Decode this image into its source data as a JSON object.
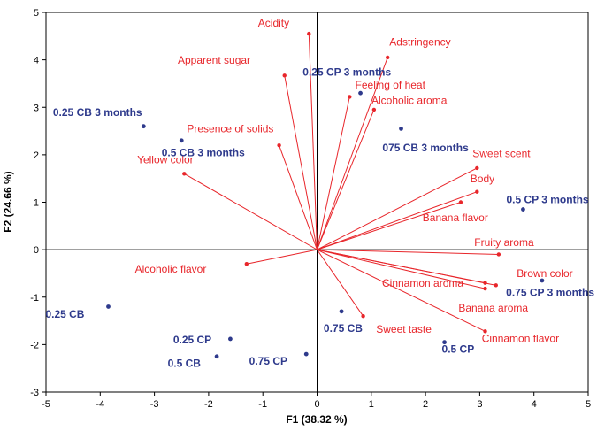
{
  "chart_data": {
    "type": "scatter",
    "subtype": "pca-biplot",
    "xlabel": "F1 (38.32 %)",
    "ylabel": "F2 (24.66 %)",
    "xlim": [
      -5,
      5
    ],
    "ylim": [
      -3,
      5
    ],
    "x_ticks": [
      -5,
      -4,
      -3,
      -2,
      -1,
      0,
      1,
      2,
      3,
      4,
      5
    ],
    "y_ticks": [
      -3,
      -2,
      -1,
      0,
      1,
      2,
      3,
      4,
      5
    ],
    "grid": false,
    "colors": {
      "variables": "#e8262b",
      "observations": "#2e3a8c",
      "axes": "#000000"
    },
    "variables": [
      {
        "name": "Acidity",
        "x": -0.15,
        "y": 4.55,
        "label_x": -0.8,
        "label_y": 4.7
      },
      {
        "name": "Apparent sugar",
        "x": -0.6,
        "y": 3.67,
        "label_x": -1.9,
        "label_y": 3.92
      },
      {
        "name": "Adstringency",
        "x": 1.3,
        "y": 4.05,
        "label_x": 1.9,
        "label_y": 4.3
      },
      {
        "name": "Feeling of heat",
        "x": 0.6,
        "y": 3.22,
        "label_x": 1.35,
        "label_y": 3.4
      },
      {
        "name": "Alcoholic aroma",
        "x": 1.05,
        "y": 2.95,
        "label_x": 1.7,
        "label_y": 3.07
      },
      {
        "name": "Presence of solids",
        "x": -0.7,
        "y": 2.2,
        "label_x": -1.6,
        "label_y": 2.47
      },
      {
        "name": "Yellow color",
        "x": -2.45,
        "y": 1.6,
        "label_x": -2.8,
        "label_y": 1.82
      },
      {
        "name": "Sweet scent",
        "x": 2.95,
        "y": 1.72,
        "label_x": 3.4,
        "label_y": 1.95
      },
      {
        "name": "Body",
        "x": 2.95,
        "y": 1.22,
        "label_x": 3.05,
        "label_y": 1.42
      },
      {
        "name": "Banana flavor",
        "x": 2.65,
        "y": 1.0,
        "label_x": 2.55,
        "label_y": 0.6
      },
      {
        "name": "Fruity aroma",
        "x": 3.35,
        "y": -0.1,
        "label_x": 3.45,
        "label_y": 0.08
      },
      {
        "name": "Brown color",
        "x": 3.3,
        "y": -0.75,
        "label_x": 4.2,
        "label_y": -0.58
      },
      {
        "name": "Cinnamon aroma",
        "x": 3.1,
        "y": -0.7,
        "label_x": 1.95,
        "label_y": -0.78
      },
      {
        "name": "Banana aroma",
        "x": 3.1,
        "y": -0.82,
        "label_x": 3.25,
        "label_y": -1.3
      },
      {
        "name": "Cinnamon flavor",
        "x": 3.1,
        "y": -1.72,
        "label_x": 3.75,
        "label_y": -1.95
      },
      {
        "name": "Sweet taste",
        "x": 0.85,
        "y": -1.4,
        "label_x": 1.6,
        "label_y": -1.75
      },
      {
        "name": "Alcoholic flavor",
        "x": -1.3,
        "y": -0.3,
        "label_x": -2.7,
        "label_y": -0.48
      }
    ],
    "observations": [
      {
        "name": "0.25 CP 3 months",
        "x": 0.8,
        "y": 3.3,
        "label_x": 0.55,
        "label_y": 3.67
      },
      {
        "name": "0.25 CB 3 months",
        "x": -3.2,
        "y": 2.6,
        "label_x": -4.05,
        "label_y": 2.82
      },
      {
        "name": "0.5 CB 3 months",
        "x": -2.5,
        "y": 2.3,
        "label_x": -2.1,
        "label_y": 1.97
      },
      {
        "name": "075 CB 3 months",
        "x": 1.55,
        "y": 2.55,
        "label_x": 2.0,
        "label_y": 2.07
      },
      {
        "name": "0.5 CP 3 months",
        "x": 3.8,
        "y": 0.85,
        "label_x": 4.25,
        "label_y": 0.98
      },
      {
        "name": "0.75 CP 3 months",
        "x": 4.15,
        "y": -0.65,
        "label_x": 4.3,
        "label_y": -0.98
      },
      {
        "name": "0.25 CB",
        "x": -3.85,
        "y": -1.2,
        "label_x": -4.65,
        "label_y": -1.43
      },
      {
        "name": "0.25 CP",
        "x": -1.6,
        "y": -1.88,
        "label_x": -2.3,
        "label_y": -1.97
      },
      {
        "name": "0.5 CB",
        "x": -1.85,
        "y": -2.25,
        "label_x": -2.45,
        "label_y": -2.47
      },
      {
        "name": "0.75 CP",
        "x": -0.2,
        "y": -2.2,
        "label_x": -0.9,
        "label_y": -2.42
      },
      {
        "name": "0.75 CB",
        "x": 0.45,
        "y": -1.3,
        "label_x": 0.48,
        "label_y": -1.73
      },
      {
        "name": "0.5 CP",
        "x": 2.35,
        "y": -1.95,
        "label_x": 2.6,
        "label_y": -2.17
      }
    ]
  }
}
